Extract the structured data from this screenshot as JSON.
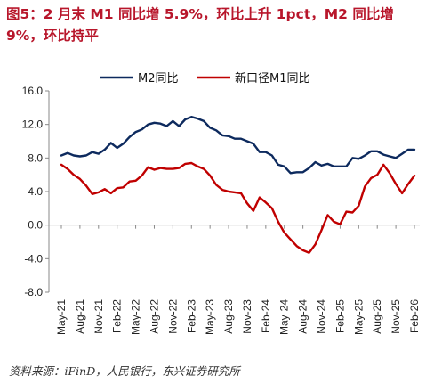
{
  "title": "图5：2 月末 M1 同比增 5.9%，环比上升 1pct，M2 同比增 9%，环比持平",
  "source": "资料来源：iFinD，人民银行，东兴证券研究所",
  "chart_data": {
    "type": "line",
    "title": "图5：2 月末 M1 同比增 5.9%，环比上升 1pct，M2 同比增 9%，环比持平",
    "xlabel": "",
    "ylabel": "",
    "ylim": [
      -8.0,
      16.0
    ],
    "yticks": [
      "16.0",
      "12.0",
      "8.0",
      "4.0",
      "0.0",
      "-4.0",
      "-8.0"
    ],
    "grid": false,
    "legend_position": "top",
    "x": [
      "May-21",
      "Jun-21",
      "Jul-21",
      "Aug-21",
      "Sep-21",
      "Oct-21",
      "Nov-21",
      "Dec-21",
      "Jan-22",
      "Feb-22",
      "Mar-22",
      "Apr-22",
      "May-22",
      "Jun-22",
      "Jul-22",
      "Aug-22",
      "Sep-22",
      "Oct-22",
      "Nov-22",
      "Dec-22",
      "Jan-23",
      "Feb-23",
      "Mar-23",
      "Apr-23",
      "May-23",
      "Jun-23",
      "Jul-23",
      "Aug-23",
      "Sep-23",
      "Oct-23",
      "Nov-23",
      "Dec-23",
      "Jan-24",
      "Feb-24",
      "Mar-24",
      "Apr-24",
      "May-24",
      "Jun-24",
      "Jul-24",
      "Aug-24",
      "Sep-24",
      "Oct-24",
      "Nov-24",
      "Dec-24",
      "Jan-25",
      "Feb-25",
      "Mar-25",
      "Apr-25",
      "May-25",
      "Jun-25",
      "Jul-25",
      "Aug-25",
      "Sep-25",
      "Oct-25",
      "Nov-25",
      "Dec-25",
      "Jan-26",
      "Feb-26"
    ],
    "xticklabels": [
      "May-21",
      "Aug-21",
      "Nov-21",
      "Feb-22",
      "May-22",
      "Aug-22",
      "Nov-22",
      "Feb-23",
      "May-23",
      "Aug-23",
      "Nov-23",
      "Feb-24",
      "May-24",
      "Aug-24",
      "Nov-24",
      "Feb-25",
      "May-25",
      "Aug-25",
      "Nov-25",
      "Feb-26"
    ],
    "series": [
      {
        "name": "M2同比",
        "color": "#0d2a5e",
        "values": [
          8.3,
          8.6,
          8.3,
          8.2,
          8.3,
          8.7,
          8.5,
          9.0,
          9.8,
          9.2,
          9.7,
          10.5,
          11.1,
          11.4,
          12.0,
          12.2,
          12.1,
          11.8,
          12.4,
          11.8,
          12.6,
          12.9,
          12.7,
          12.4,
          11.6,
          11.3,
          10.7,
          10.6,
          10.3,
          10.3,
          10.0,
          9.7,
          8.7,
          8.7,
          8.3,
          7.2,
          7.0,
          6.2,
          6.3,
          6.3,
          6.8,
          7.5,
          7.1,
          7.3,
          7.0,
          7.0,
          7.0,
          8.0,
          7.9,
          8.3,
          8.8,
          8.8,
          8.4,
          8.2,
          8.0,
          8.5,
          9.0,
          9.0
        ]
      },
      {
        "name": "新口径M1同比",
        "color": "#c00000",
        "values": [
          7.2,
          6.7,
          6.0,
          5.5,
          4.7,
          3.7,
          3.9,
          4.3,
          3.8,
          4.4,
          4.5,
          5.2,
          5.3,
          5.9,
          6.9,
          6.6,
          6.8,
          6.7,
          6.7,
          6.8,
          7.3,
          7.4,
          7.0,
          6.7,
          5.9,
          4.8,
          4.2,
          4.0,
          3.9,
          3.8,
          2.6,
          1.7,
          3.3,
          2.7,
          2.0,
          0.4,
          -0.9,
          -1.7,
          -2.5,
          -3.0,
          -3.3,
          -2.3,
          -0.6,
          1.2,
          0.4,
          0.1,
          1.6,
          1.5,
          2.3,
          4.6,
          5.6,
          6.0,
          7.2,
          6.2,
          4.9,
          3.8,
          4.9,
          5.9
        ]
      }
    ]
  },
  "colors": {
    "title": "#b8162b",
    "m2_line": "#0d2a5e",
    "m1_line": "#c00000",
    "axis": "#888888"
  }
}
